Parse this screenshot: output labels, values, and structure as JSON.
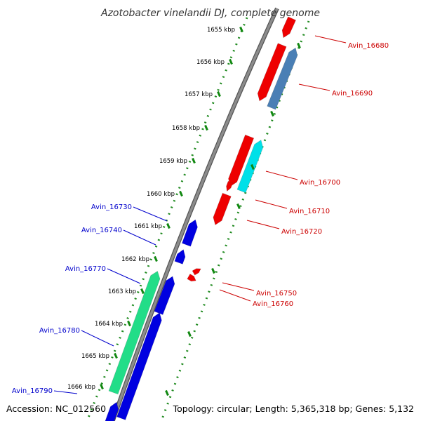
{
  "title": "Azotobacter vinelandii DJ, complete genome",
  "footer": {
    "accession": "Accession: NC_012560",
    "topology": "Topology: circular; Length: 5,365,318 bp; Genes: 5,132"
  },
  "scale": {
    "unit": "kbp",
    "ticks": [
      "1655 kbp",
      "1656 kbp",
      "1657 kbp",
      "1658 kbp",
      "1659 kbp",
      "1660 kbp",
      "1661 kbp",
      "1662 kbp",
      "1663 kbp",
      "1664 kbp",
      "1665 kbp",
      "1666 kbp"
    ]
  },
  "colors": {
    "backbone": "#8c8c8c",
    "track_dots": "#1f8a1f",
    "forward_label": "#cc0000",
    "reverse_label": "#0000cc",
    "red": "#ee0000",
    "steelblue": "#4a7fb5",
    "cyan": "#00e0e8",
    "blue": "#0000e0",
    "green": "#22dd88"
  },
  "genes": {
    "forward": [
      {
        "name": "Avin_16680",
        "color": "red"
      },
      {
        "name": "Avin_16690",
        "color": "steelblue"
      },
      {
        "name": "Avin_16700",
        "color": "cyan"
      },
      {
        "name": "Avin_16710",
        "color": "red"
      },
      {
        "name": "Avin_16720",
        "color": "red"
      },
      {
        "name": "Avin_16750",
        "color": "red"
      },
      {
        "name": "Avin_16760",
        "color": "red"
      }
    ],
    "reverse": [
      {
        "name": "Avin_16730",
        "color": "blue"
      },
      {
        "name": "Avin_16740",
        "color": "blue"
      },
      {
        "name": "Avin_16770",
        "color": "green"
      },
      {
        "name": "Avin_16780",
        "color": "blue"
      },
      {
        "name": "Avin_16790",
        "color": "blue"
      }
    ]
  }
}
